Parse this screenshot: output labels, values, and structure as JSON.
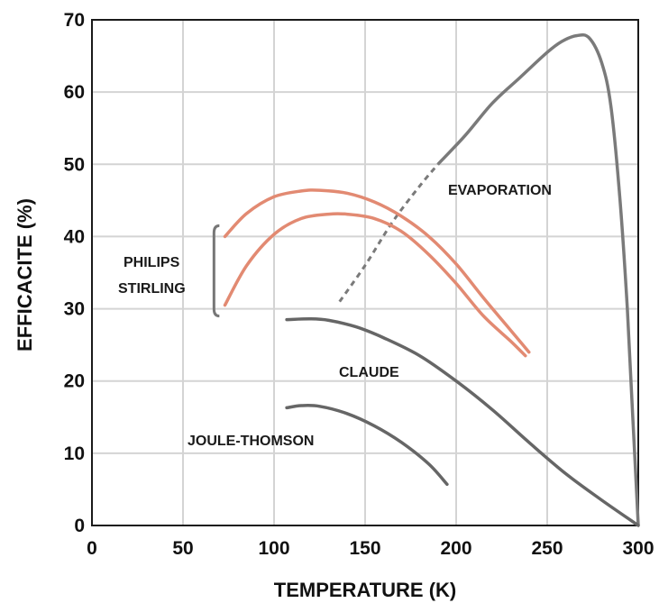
{
  "chart_data": {
    "type": "line",
    "xlabel": "TEMPERATURE (K)",
    "ylabel": "EFFICACITE (%)",
    "xlim": [
      0,
      300
    ],
    "ylim": [
      0,
      70
    ],
    "xticks": [
      "0",
      "50",
      "100",
      "150",
      "200",
      "250",
      "300"
    ],
    "yticks": [
      "0",
      "10",
      "20",
      "30",
      "40",
      "50",
      "60",
      "70"
    ],
    "grid": true,
    "annotations": [
      "EVAPORATION",
      "PHILIPS",
      "STIRLING",
      "CLAUDE",
      "JOULE-THOMSON"
    ],
    "series": [
      {
        "name": "EVAPORATION",
        "color": "#7a7a7a",
        "x": [
          136,
          150,
          165,
          180,
          190,
          205,
          220,
          235,
          250,
          258,
          266,
          273,
          280,
          285,
          290,
          294,
          297,
          300
        ],
        "y": [
          31,
          36,
          42,
          47,
          50,
          54,
          58.5,
          62,
          65.5,
          67,
          67.8,
          67.5,
          64,
          58,
          45,
          30,
          15,
          0
        ],
        "dashed_segment_x": [
          136,
          190
        ]
      },
      {
        "name": "PHILIPS STIRLING (upper)",
        "color": "#e28a72",
        "x": [
          73,
          85,
          100,
          115,
          125,
          140,
          155,
          170,
          185,
          200,
          215,
          230,
          240
        ],
        "y": [
          40,
          43.2,
          45.5,
          46.3,
          46.4,
          46,
          44.8,
          42.8,
          40,
          36.2,
          31.5,
          27,
          24
        ]
      },
      {
        "name": "PHILIPS STIRLING (lower)",
        "color": "#e28a72",
        "x": [
          73,
          85,
          100,
          115,
          130,
          140,
          155,
          170,
          185,
          200,
          215,
          230,
          238
        ],
        "y": [
          30.5,
          36,
          40.3,
          42.5,
          43.1,
          43.1,
          42.5,
          40.7,
          37.5,
          33.5,
          29,
          25.5,
          23.5
        ]
      },
      {
        "name": "CLAUDE",
        "color": "#666666",
        "x": [
          107,
          120,
          130,
          145,
          160,
          180,
          200,
          220,
          240,
          260,
          280,
          300
        ],
        "y": [
          28.5,
          28.6,
          28.4,
          27.5,
          26,
          23.5,
          20,
          16,
          11.5,
          7.2,
          3.5,
          0
        ]
      },
      {
        "name": "JOULE-THOMSON",
        "color": "#666666",
        "x": [
          107,
          115,
          125,
          140,
          155,
          170,
          185,
          195
        ],
        "y": [
          16.3,
          16.6,
          16.5,
          15.5,
          13.8,
          11.5,
          8.5,
          5.7
        ]
      }
    ]
  }
}
